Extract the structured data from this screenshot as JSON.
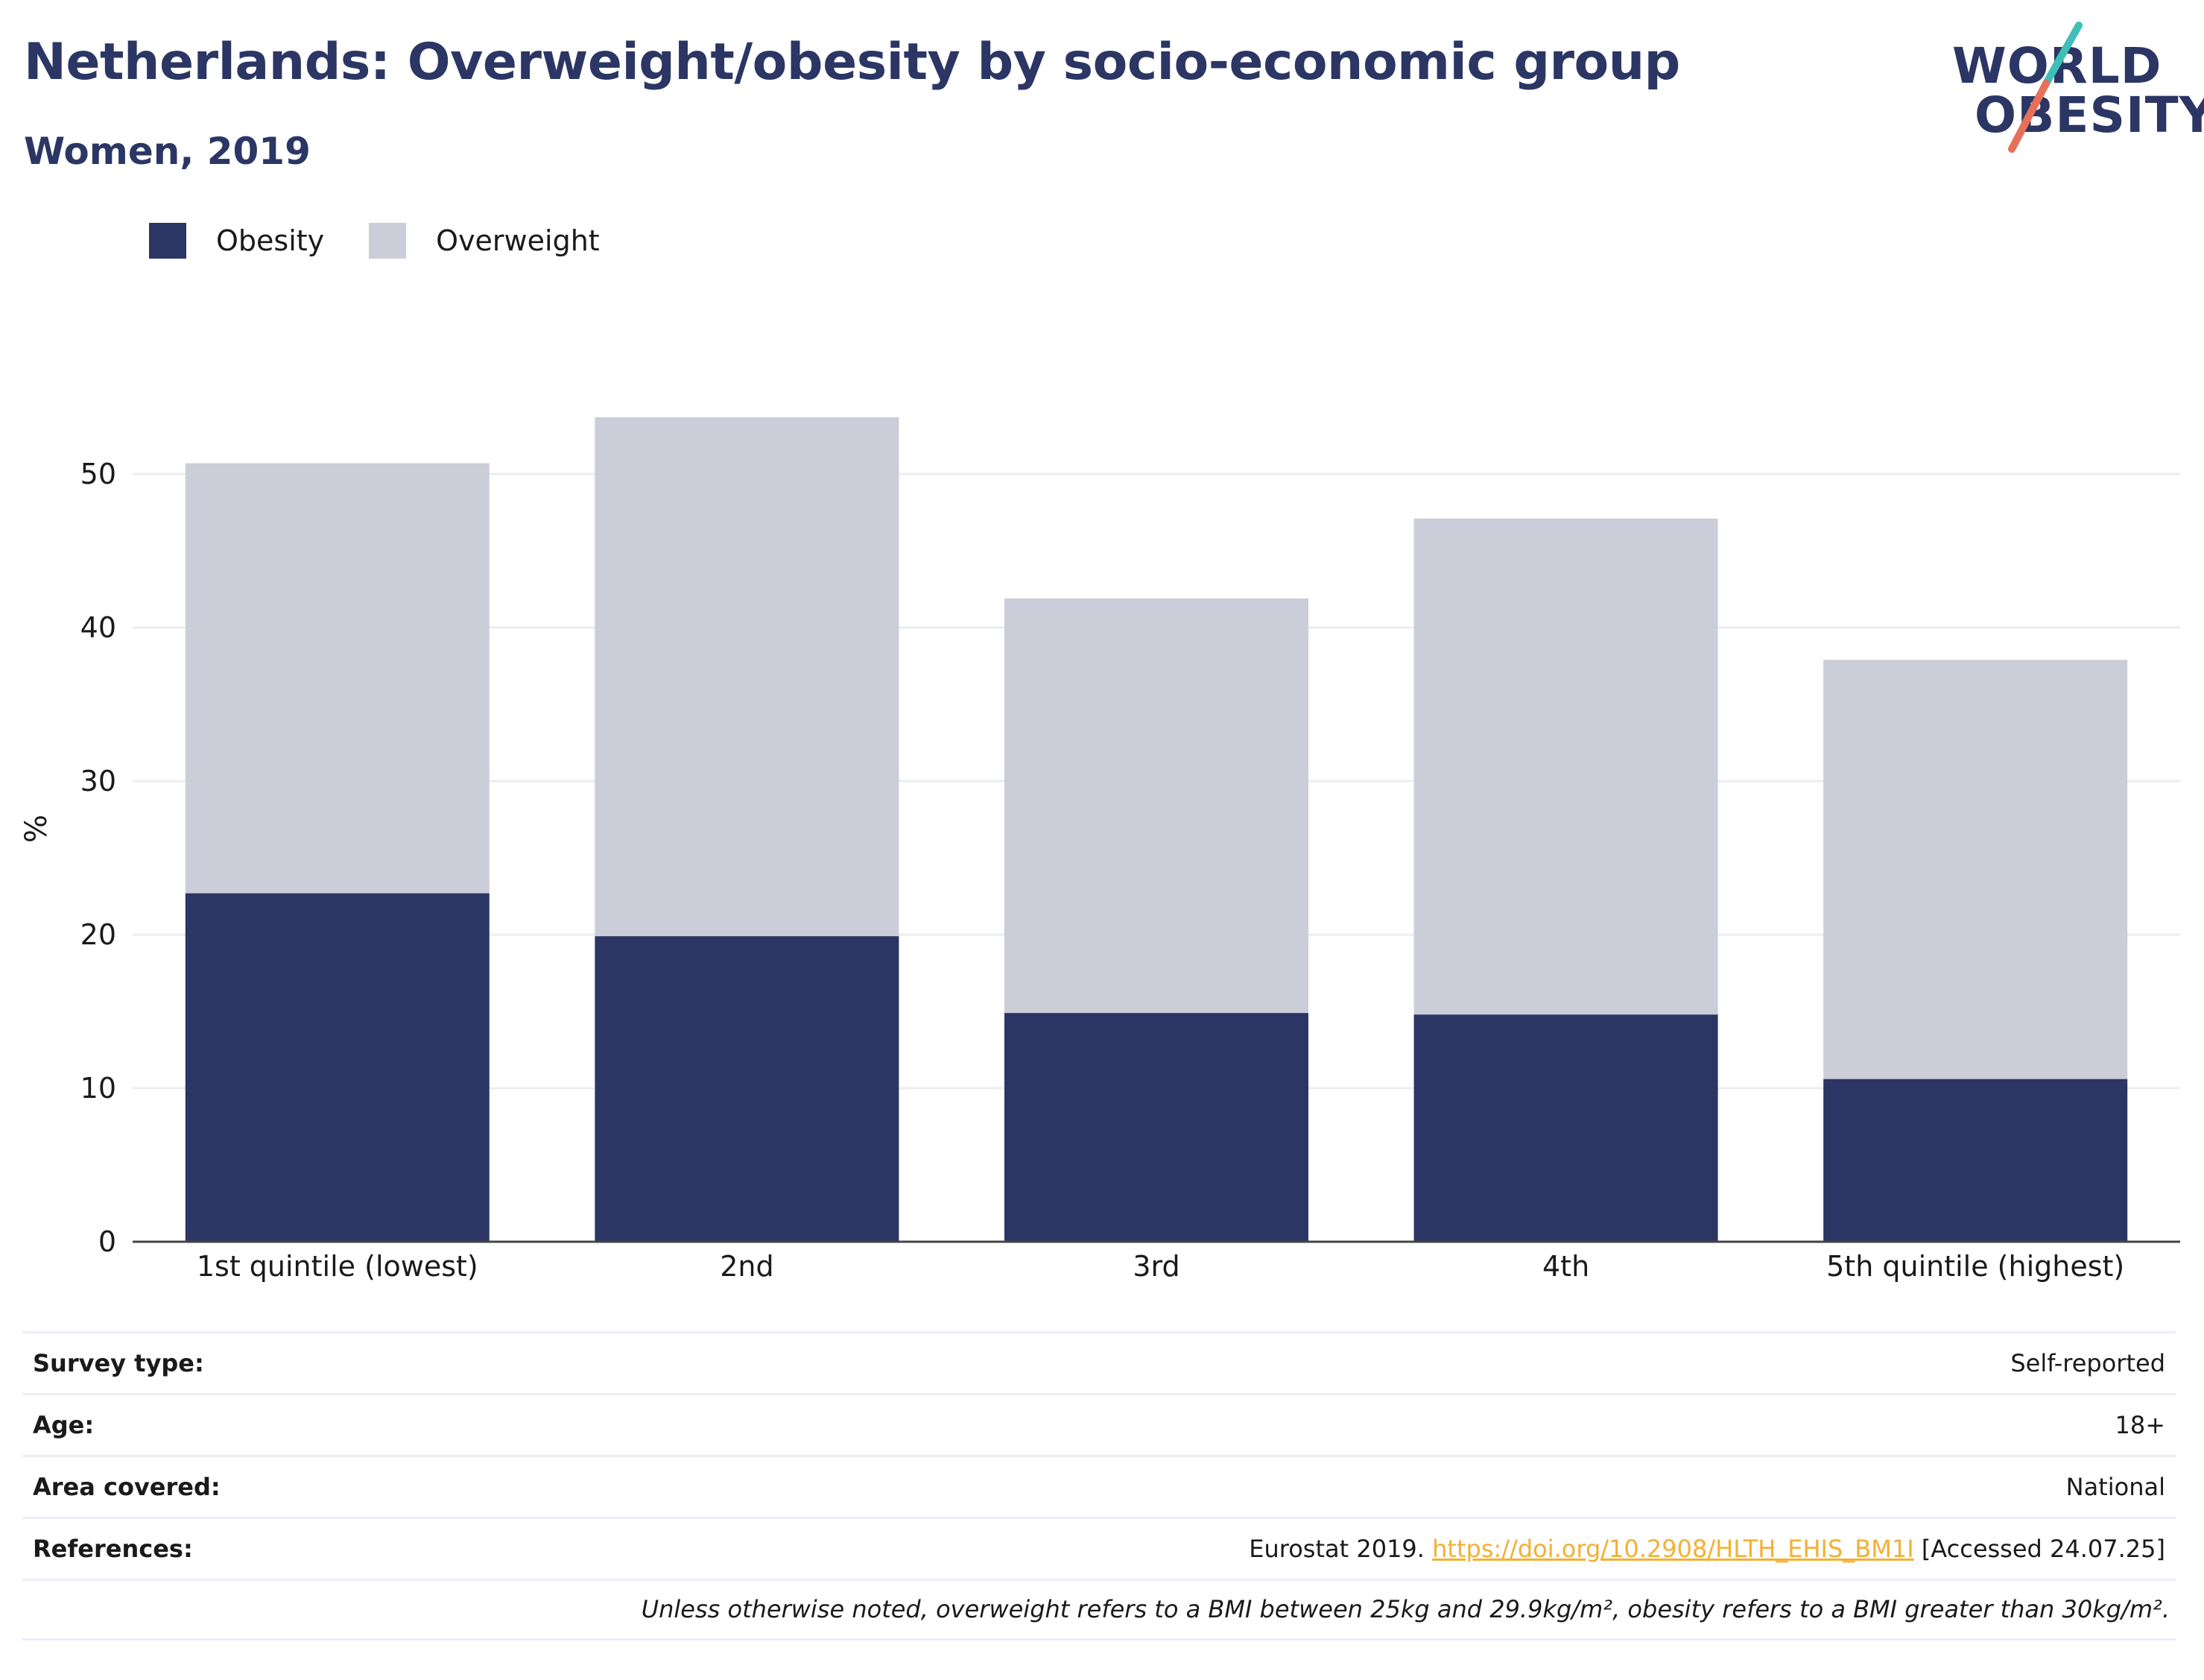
{
  "header": {
    "title": "Netherlands: Overweight/obesity by socio-economic group",
    "subtitle": "Women, 2019"
  },
  "logo": {
    "line1": "WORLD",
    "line2": "OBESITY",
    "icon": "world-obesity-logo"
  },
  "colors": {
    "obesity": "#2b3664",
    "overweight": "#cbcdd8",
    "link": "#f2b134",
    "logo_teal": "#3fbfb8",
    "logo_coral": "#e8705a"
  },
  "legend": [
    {
      "label": "Obesity",
      "color": "#2b3664"
    },
    {
      "label": "Overweight",
      "color": "#cbcdd8"
    }
  ],
  "chart_data": {
    "type": "bar",
    "stacked": true,
    "categories": [
      "1st quintile (lowest)",
      "2nd",
      "3rd",
      "4th",
      "5th quintile (highest)"
    ],
    "series": [
      {
        "name": "Obesity",
        "values": [
          22.7,
          19.9,
          14.9,
          14.8,
          10.6
        ]
      },
      {
        "name": "Overweight",
        "values": [
          28.0,
          33.8,
          27.0,
          32.3,
          27.3
        ]
      }
    ],
    "ylabel": "%",
    "ylim": [
      0,
      55
    ],
    "yticks": [
      0,
      10,
      20,
      30,
      40,
      50
    ],
    "grid": true,
    "legend_position": "top-left"
  },
  "info": {
    "survey_type": {
      "key": "Survey type:",
      "value": "Self-reported"
    },
    "age": {
      "key": "Age:",
      "value": "18+"
    },
    "area": {
      "key": "Area covered:",
      "value": "National"
    },
    "references": {
      "key": "References:",
      "prefix": "Eurostat 2019.",
      "link": "https://doi.org/10.2908/HLTH_EHIS_BM1I",
      "suffix": "[Accessed 24.07.25]"
    }
  },
  "note": "Unless otherwise noted, overweight refers to a BMI between 25kg and 29.9kg/m², obesity refers to a BMI greater than 30kg/m²."
}
